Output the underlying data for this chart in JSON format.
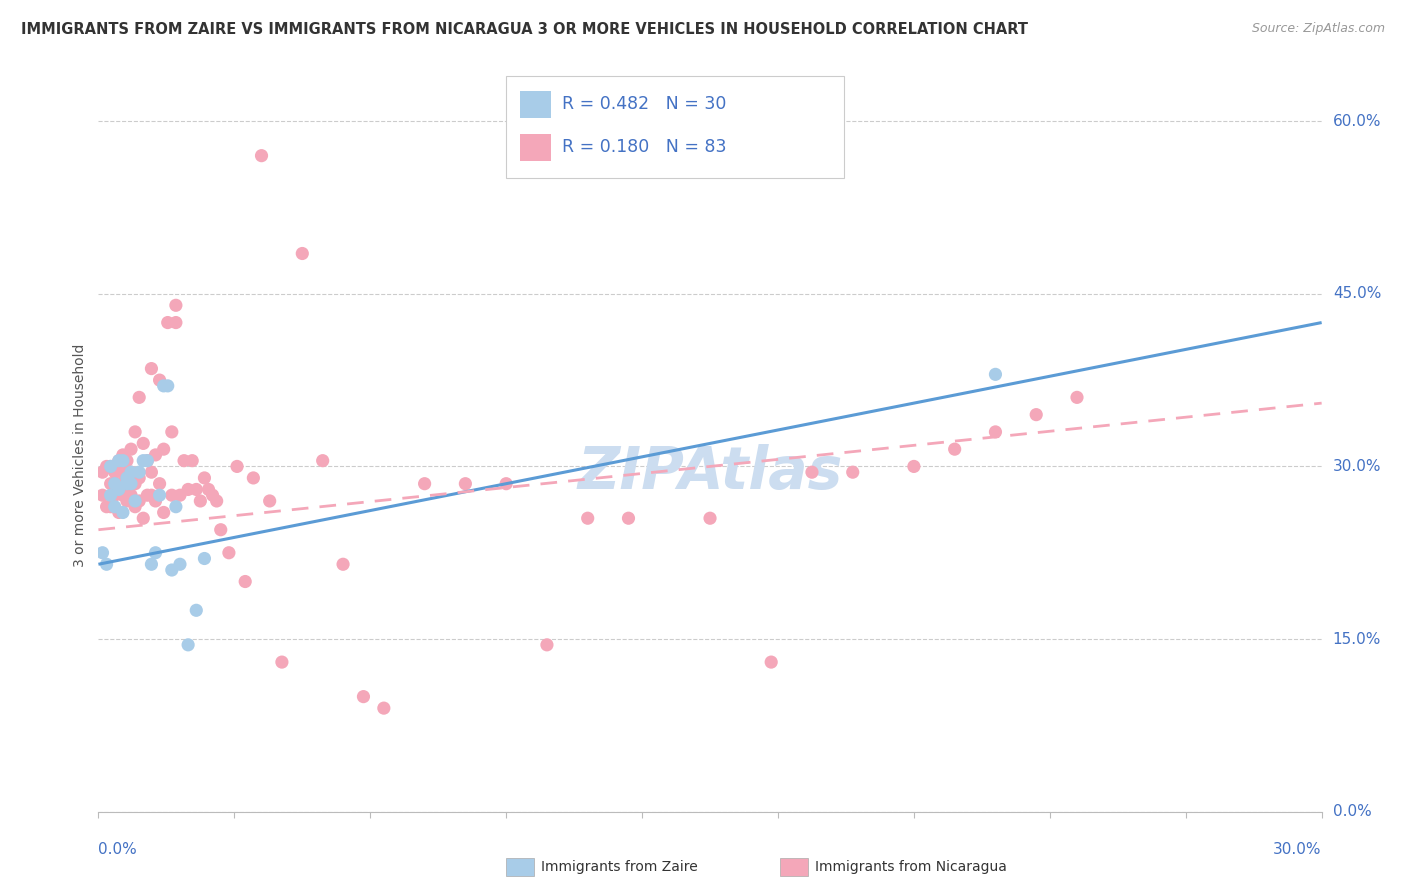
{
  "title": "IMMIGRANTS FROM ZAIRE VS IMMIGRANTS FROM NICARAGUA 3 OR MORE VEHICLES IN HOUSEHOLD CORRELATION CHART",
  "source": "Source: ZipAtlas.com",
  "ylabel": "3 or more Vehicles in Household",
  "R_zaire": 0.482,
  "N_zaire": 30,
  "R_nicaragua": 0.18,
  "N_nicaragua": 83,
  "color_zaire": "#a8cce8",
  "color_nicaragua": "#f4a7b9",
  "color_line_zaire": "#5b9bd5",
  "color_line_nicaragua": "#f4a7b9",
  "color_blue_text": "#4472c4",
  "watermark_color": "#ccddf0",
  "background_color": "#ffffff",
  "xlim": [
    0,
    0.3
  ],
  "ylim": [
    0,
    0.62
  ],
  "y_ticks": [
    0.0,
    0.15,
    0.3,
    0.45,
    0.6
  ],
  "y_tick_labels": [
    "0.0%",
    "15.0%",
    "30.0%",
    "45.0%",
    "60.0%"
  ],
  "x_tick_label_left": "0.0%",
  "x_tick_label_right": "30.0%",
  "legend_zaire_label": "Immigrants from Zaire",
  "legend_nicaragua_label": "Immigrants from Nicaragua",
  "zaire_x": [
    0.001,
    0.002,
    0.003,
    0.003,
    0.004,
    0.004,
    0.005,
    0.005,
    0.006,
    0.006,
    0.007,
    0.007,
    0.008,
    0.008,
    0.009,
    0.01,
    0.011,
    0.012,
    0.013,
    0.014,
    0.015,
    0.016,
    0.017,
    0.018,
    0.019,
    0.02,
    0.022,
    0.024,
    0.026,
    0.22
  ],
  "zaire_y": [
    0.225,
    0.215,
    0.3,
    0.275,
    0.285,
    0.265,
    0.305,
    0.28,
    0.26,
    0.305,
    0.29,
    0.285,
    0.295,
    0.285,
    0.27,
    0.295,
    0.305,
    0.305,
    0.215,
    0.225,
    0.275,
    0.37,
    0.37,
    0.21,
    0.265,
    0.215,
    0.145,
    0.175,
    0.22,
    0.38
  ],
  "nicaragua_x": [
    0.001,
    0.001,
    0.002,
    0.002,
    0.003,
    0.003,
    0.003,
    0.004,
    0.004,
    0.005,
    0.005,
    0.005,
    0.006,
    0.006,
    0.006,
    0.007,
    0.007,
    0.007,
    0.008,
    0.008,
    0.008,
    0.009,
    0.009,
    0.009,
    0.01,
    0.01,
    0.01,
    0.011,
    0.011,
    0.012,
    0.012,
    0.013,
    0.013,
    0.013,
    0.014,
    0.014,
    0.015,
    0.015,
    0.016,
    0.016,
    0.017,
    0.018,
    0.018,
    0.019,
    0.019,
    0.02,
    0.021,
    0.022,
    0.023,
    0.024,
    0.025,
    0.026,
    0.027,
    0.028,
    0.029,
    0.03,
    0.032,
    0.034,
    0.036,
    0.038,
    0.04,
    0.042,
    0.045,
    0.05,
    0.055,
    0.06,
    0.065,
    0.07,
    0.08,
    0.09,
    0.1,
    0.11,
    0.12,
    0.13,
    0.15,
    0.165,
    0.175,
    0.185,
    0.2,
    0.21,
    0.22,
    0.23,
    0.24
  ],
  "nicaragua_y": [
    0.275,
    0.295,
    0.265,
    0.3,
    0.285,
    0.265,
    0.3,
    0.275,
    0.295,
    0.26,
    0.285,
    0.305,
    0.275,
    0.295,
    0.31,
    0.27,
    0.285,
    0.305,
    0.275,
    0.295,
    0.315,
    0.265,
    0.285,
    0.33,
    0.27,
    0.29,
    0.36,
    0.255,
    0.32,
    0.275,
    0.305,
    0.275,
    0.295,
    0.385,
    0.27,
    0.31,
    0.285,
    0.375,
    0.26,
    0.315,
    0.425,
    0.275,
    0.33,
    0.44,
    0.425,
    0.275,
    0.305,
    0.28,
    0.305,
    0.28,
    0.27,
    0.29,
    0.28,
    0.275,
    0.27,
    0.245,
    0.225,
    0.3,
    0.2,
    0.29,
    0.57,
    0.27,
    0.13,
    0.485,
    0.305,
    0.215,
    0.1,
    0.09,
    0.285,
    0.285,
    0.285,
    0.145,
    0.255,
    0.255,
    0.255,
    0.13,
    0.295,
    0.295,
    0.3,
    0.315,
    0.33,
    0.345,
    0.36
  ],
  "zaire_line_x": [
    0.0,
    0.3
  ],
  "zaire_line_y": [
    0.215,
    0.425
  ],
  "nicaragua_line_x": [
    0.0,
    0.3
  ],
  "nicaragua_line_y": [
    0.245,
    0.355
  ]
}
